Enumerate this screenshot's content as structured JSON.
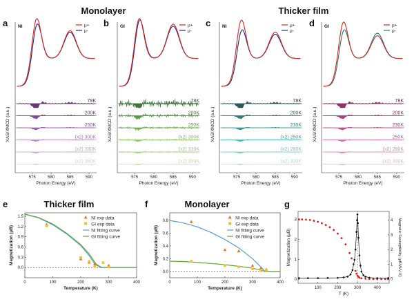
{
  "titles": {
    "top_left": "Monolayer",
    "top_right": "Thicker film",
    "e": "Thicker film",
    "f": "Monolayer"
  },
  "panels": {
    "a": {
      "letter": "a",
      "tag": "NI",
      "mu_plus": "μ+",
      "mu_minus": "μ-",
      "temps": [
        "78K",
        "200K",
        "250K",
        "(x2) 300K",
        "(x2) 330K",
        "(x2) 350K"
      ],
      "temp_colors": [
        "#4a1a5e",
        "#6b2a80",
        "#8a4aa0",
        "#a874b8",
        "#c4a0d0",
        "#dcc8e4"
      ]
    },
    "b": {
      "letter": "b",
      "tag": "GI",
      "mu_plus": "μ+",
      "mu_minus": "μ-",
      "temps": [
        "78K",
        "200K",
        "250K",
        "(x2) 300K",
        "(x2) 330K",
        "(x2) 350K"
      ],
      "temp_colors": [
        "#1e5f1e",
        "#3b8a2a",
        "#5aa832",
        "#78bc46",
        "#9ccc6e",
        "#c0dc9a"
      ]
    },
    "c": {
      "letter": "c",
      "tag": "NI",
      "mu_plus": "μ+",
      "mu_minus": "μ-",
      "temps": [
        "78K",
        "200K",
        "230K",
        "(x2) 250K",
        "(x2) 280K",
        "(x2) 300K"
      ],
      "temp_colors": [
        "#0d3b3b",
        "#166060",
        "#1e8a8a",
        "#2aa6a6",
        "#6cc4c4",
        "#a8dcdc"
      ]
    },
    "d": {
      "letter": "d",
      "tag": "GI",
      "mu_plus": "μ+",
      "mu_minus": "μ-",
      "temps": [
        "78K",
        "200K",
        "230K",
        "250K",
        "(x2) 280K",
        "(x2) 300K"
      ],
      "temp_colors": [
        "#7a1050",
        "#9a1e66",
        "#b43680",
        "#c8569a",
        "#d882b6",
        "#e8b2d4"
      ]
    }
  },
  "xas_axis": {
    "ylabel": "XAS/XMCD (a.u.)",
    "xlabel": "Photon Energy (eV)",
    "ticks": [
      "575",
      "580",
      "585",
      "590"
    ]
  },
  "colors": {
    "mu_plus": "#d9261c",
    "mu_minus": "#1c2a8c",
    "mu_minus_d": "#1f7a7a",
    "ni": "#e07820",
    "gi": "#f0c030",
    "ni_fit": "#5b9bd5",
    "gi_fit": "#5fa832",
    "mag": "#d62020",
    "susc": "#111111"
  },
  "chart_data": [
    {
      "panel": "e",
      "type": "scatter",
      "title": "Thicker film",
      "xlabel": "Temperature (K)",
      "ylabel": "Magnetization (μB)",
      "xlim": [
        0,
        400
      ],
      "ylim": [
        -0.3,
        1.6
      ],
      "xticks": [
        "0",
        "100",
        "200",
        "300",
        "400"
      ],
      "yticks": [
        "0.0",
        "0.3",
        "0.6",
        "0.9",
        "1.2",
        "1.5"
      ],
      "series": [
        {
          "name": "NI exp data",
          "x": [
            78,
            200,
            230,
            250,
            300
          ],
          "y": [
            1.26,
            0.25,
            0.15,
            0.1,
            0.06
          ]
        },
        {
          "name": "GI exp data",
          "x": [
            78,
            200,
            230,
            250,
            280,
            300
          ],
          "y": [
            1.22,
            0.29,
            0.18,
            0.03,
            0.14,
            0.01
          ]
        }
      ],
      "fits": [
        {
          "name": "NI fitting curve",
          "x": [
            0,
            50,
            100,
            150,
            200,
            230,
            250,
            270,
            400
          ],
          "y": [
            1.56,
            1.45,
            1.25,
            0.98,
            0.64,
            0.35,
            0.1,
            0.0,
            0.0
          ]
        },
        {
          "name": "GI fitting curve",
          "x": [
            0,
            50,
            100,
            150,
            200,
            230,
            255,
            275,
            400
          ],
          "y": [
            1.56,
            1.46,
            1.27,
            1.0,
            0.67,
            0.4,
            0.1,
            0.0,
            0.0
          ]
        }
      ]
    },
    {
      "panel": "f",
      "type": "scatter",
      "title": "Monolayer",
      "xlabel": "Temperature (K)",
      "ylabel": "Magnetization (μB)",
      "xlim": [
        0,
        400
      ],
      "ylim": [
        -0.1,
        0.92
      ],
      "xticks": [
        "0",
        "100",
        "200",
        "300",
        "400"
      ],
      "yticks": [
        "0.0",
        "0.2",
        "0.4",
        "0.6",
        "0.8"
      ],
      "series": [
        {
          "name": "NI exp data",
          "x": [
            78,
            200,
            250,
            300,
            330,
            350
          ],
          "y": [
            0.78,
            0.34,
            0.32,
            0.09,
            0.05,
            0.03
          ]
        },
        {
          "name": "GI exp data",
          "x": [
            78,
            200,
            250,
            300,
            330,
            350
          ],
          "y": [
            0.16,
            0.09,
            0.07,
            0.04,
            0.02,
            0.02
          ]
        }
      ],
      "fits": [
        {
          "name": "NI fitting curve",
          "x": [
            0,
            50,
            100,
            150,
            200,
            250,
            300,
            330,
            345,
            400
          ],
          "y": [
            0.8,
            0.76,
            0.7,
            0.61,
            0.5,
            0.37,
            0.2,
            0.07,
            0.0,
            0.0
          ]
        },
        {
          "name": "GI fitting curve",
          "x": [
            0,
            50,
            100,
            150,
            200,
            250,
            300,
            330,
            345,
            400
          ],
          "y": [
            0.16,
            0.155,
            0.14,
            0.125,
            0.105,
            0.08,
            0.05,
            0.02,
            0.0,
            0.0
          ]
        }
      ]
    },
    {
      "panel": "g",
      "type": "line",
      "xlabel": "T (K)",
      "ylabel": "Magnetization (μB)",
      "y2label": "Magnetic Susceptibility (μB/W/V·K)",
      "xlim": [
        0,
        460
      ],
      "ylim": [
        -0.2,
        3.4
      ],
      "y2lim": [
        -0.3,
        4.6
      ],
      "xticks": [
        "100",
        "200",
        "300",
        "400"
      ],
      "yticks": [
        "0",
        "1",
        "2",
        "3"
      ],
      "y2ticks": [
        "0",
        "1",
        "2",
        "3",
        "4"
      ],
      "vline_x": 300,
      "series": [
        {
          "name": "Magnetization",
          "axis": "left",
          "x": [
            5,
            20,
            40,
            60,
            80,
            100,
            120,
            140,
            160,
            180,
            200,
            220,
            240,
            260,
            270,
            280,
            290,
            295,
            300,
            305,
            310,
            320,
            340,
            360,
            380,
            400,
            420,
            440,
            455
          ],
          "y": [
            3.0,
            3.0,
            2.99,
            2.97,
            2.93,
            2.88,
            2.81,
            2.72,
            2.61,
            2.47,
            2.29,
            2.06,
            1.75,
            1.32,
            1.05,
            0.75,
            0.42,
            0.28,
            0.18,
            0.12,
            0.08,
            0.05,
            0.03,
            0.02,
            0.015,
            0.01,
            0.01,
            0.01,
            0.01
          ]
        },
        {
          "name": "Magnetic Susceptibility",
          "axis": "right",
          "x": [
            5,
            50,
            100,
            150,
            200,
            230,
            250,
            265,
            275,
            285,
            290,
            295,
            298,
            300,
            302,
            305,
            310,
            315,
            320,
            330,
            340,
            360,
            400,
            455
          ],
          "y": [
            0.05,
            0.05,
            0.05,
            0.06,
            0.07,
            0.1,
            0.15,
            0.3,
            0.6,
            1.3,
            2.0,
            3.2,
            4.0,
            4.4,
            3.8,
            2.8,
            1.6,
            0.9,
            0.5,
            0.25,
            0.15,
            0.08,
            0.05,
            0.05
          ]
        }
      ]
    }
  ]
}
